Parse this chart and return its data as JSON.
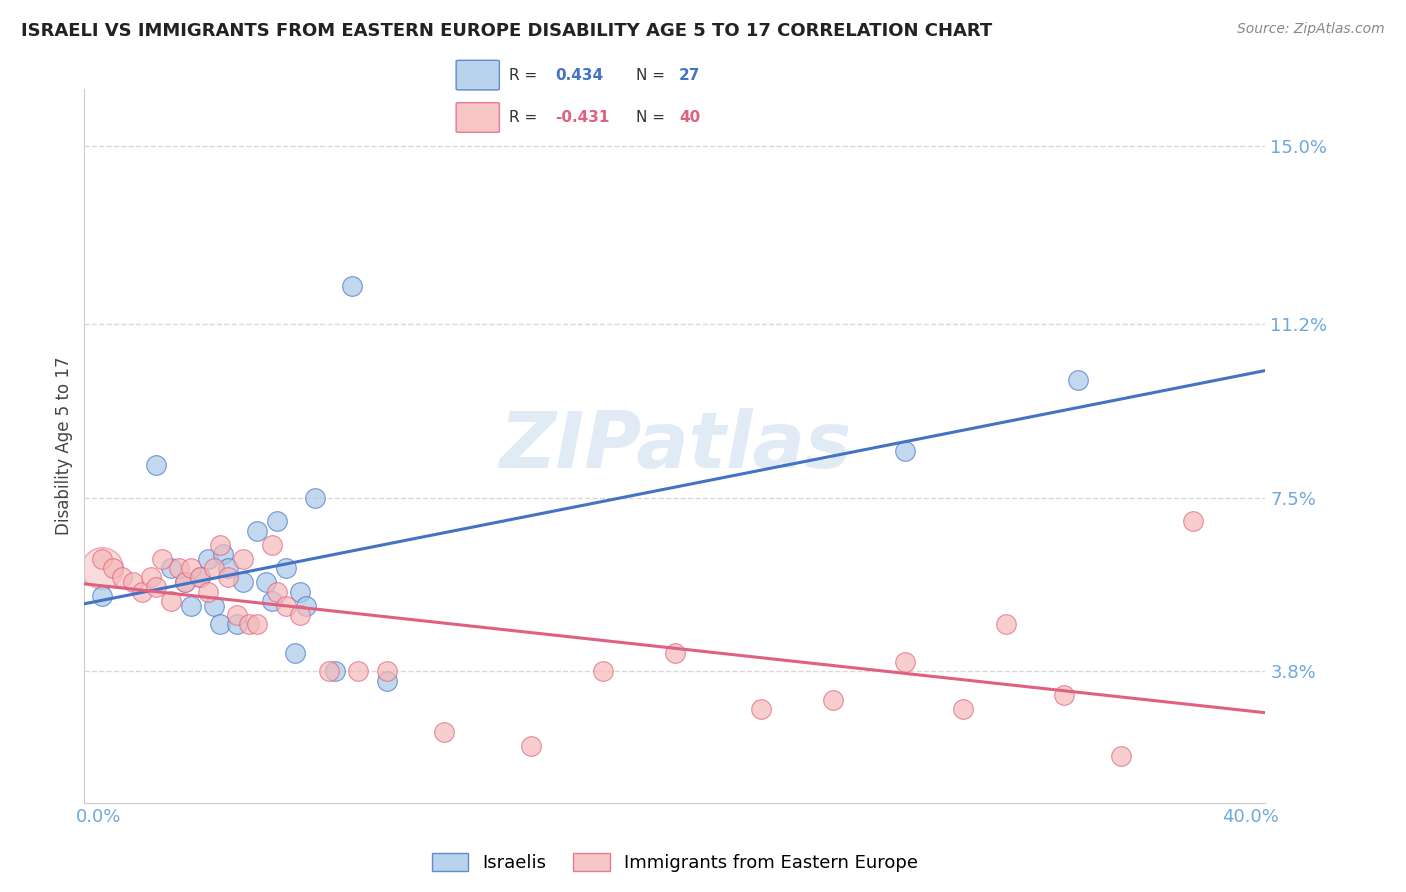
{
  "title": "ISRAELI VS IMMIGRANTS FROM EASTERN EUROPE DISABILITY AGE 5 TO 17 CORRELATION CHART",
  "source": "Source: ZipAtlas.com",
  "ylabel": "Disability Age 5 to 17",
  "ytick_labels": [
    "3.8%",
    "7.5%",
    "11.2%",
    "15.0%"
  ],
  "ytick_values": [
    0.038,
    0.075,
    0.112,
    0.15
  ],
  "xlim": [
    -0.005,
    0.405
  ],
  "ylim": [
    0.01,
    0.162
  ],
  "legend_blue_r": "0.434",
  "legend_blue_n": "27",
  "legend_pink_r": "-0.431",
  "legend_pink_n": "40",
  "watermark": "ZIPatlas",
  "israelis_x": [
    0.001,
    0.02,
    0.025,
    0.03,
    0.032,
    0.035,
    0.038,
    0.04,
    0.042,
    0.043,
    0.045,
    0.048,
    0.05,
    0.055,
    0.058,
    0.06,
    0.062,
    0.065,
    0.068,
    0.07,
    0.072,
    0.075,
    0.082,
    0.088,
    0.1,
    0.28,
    0.34
  ],
  "israelis_y": [
    0.054,
    0.082,
    0.06,
    0.057,
    0.052,
    0.058,
    0.062,
    0.052,
    0.048,
    0.063,
    0.06,
    0.048,
    0.057,
    0.068,
    0.057,
    0.053,
    0.07,
    0.06,
    0.042,
    0.055,
    0.052,
    0.075,
    0.038,
    0.12,
    0.036,
    0.085,
    0.1
  ],
  "immigrants_x": [
    0.001,
    0.005,
    0.008,
    0.012,
    0.015,
    0.018,
    0.02,
    0.022,
    0.025,
    0.028,
    0.03,
    0.032,
    0.035,
    0.038,
    0.04,
    0.042,
    0.045,
    0.048,
    0.05,
    0.052,
    0.055,
    0.06,
    0.062,
    0.065,
    0.07,
    0.08,
    0.09,
    0.1,
    0.12,
    0.15,
    0.175,
    0.2,
    0.23,
    0.255,
    0.28,
    0.3,
    0.315,
    0.335,
    0.355,
    0.38
  ],
  "immigrants_y": [
    0.062,
    0.06,
    0.058,
    0.057,
    0.055,
    0.058,
    0.056,
    0.062,
    0.053,
    0.06,
    0.057,
    0.06,
    0.058,
    0.055,
    0.06,
    0.065,
    0.058,
    0.05,
    0.062,
    0.048,
    0.048,
    0.065,
    0.055,
    0.052,
    0.05,
    0.038,
    0.038,
    0.038,
    0.025,
    0.022,
    0.038,
    0.042,
    0.03,
    0.032,
    0.04,
    0.03,
    0.048,
    0.033,
    0.02,
    0.07
  ],
  "blue_color": "#a8c8e8",
  "pink_color": "#f4b8b8",
  "blue_line_color": "#4472c4",
  "pink_line_color": "#e06080",
  "axis_tick_color": "#6fa8dc",
  "title_color": "#222222",
  "grid_color": "#d8d8d8",
  "watermark_color": "#c5d8ee",
  "source_color": "#888888"
}
